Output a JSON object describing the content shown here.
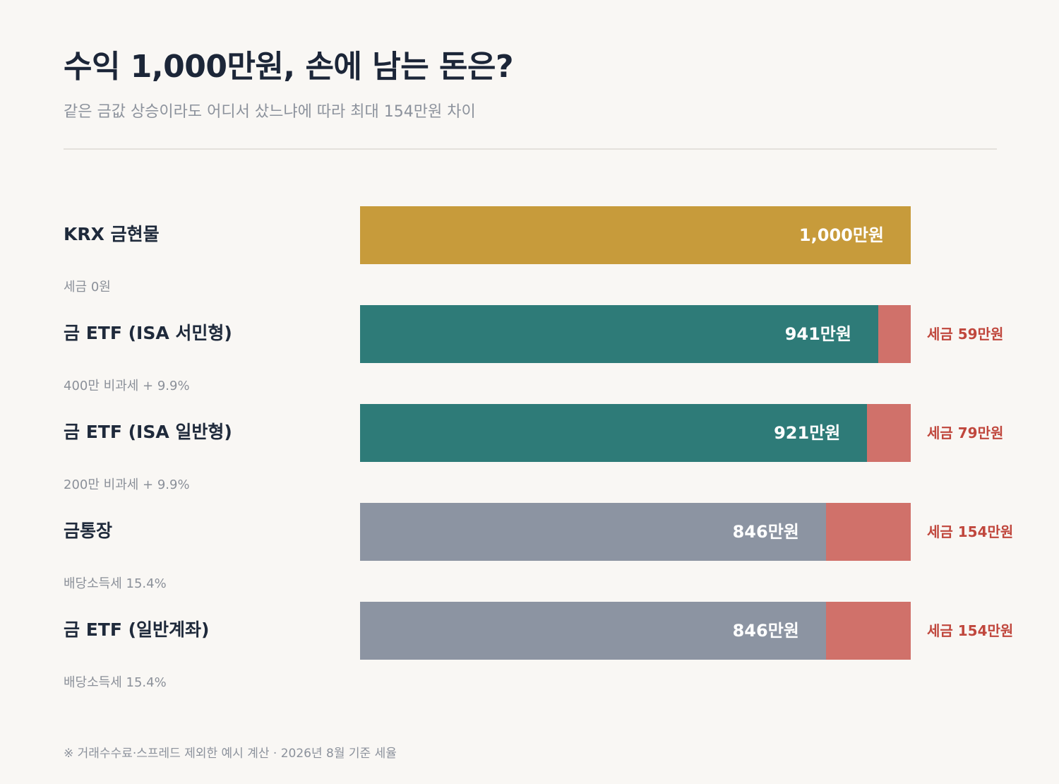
{
  "header": {
    "title": "수익 1,000만원, 손에 남는 돈은?",
    "subtitle": "같은 금값 상승이라도 어디서 샀느냐에 따라 최대 154만원 차이"
  },
  "colors": {
    "gold": "#c79b3b",
    "teal": "#2e7b78",
    "gray": "#8c94a2",
    "tax": "#d0716a",
    "tax_text": "#c0473d"
  },
  "chart_data": {
    "type": "bar",
    "orientation": "horizontal",
    "stacked": true,
    "xlim": [
      0,
      1000
    ],
    "unit": "만원",
    "categories": [
      "KRX 금현물",
      "금 ETF (ISA 서민형)",
      "금 ETF (ISA 일반형)",
      "금통장",
      "금 ETF (일반계좌)"
    ],
    "rows": [
      {
        "label": "KRX 금현물",
        "sub": "세금 0원",
        "net": 1000,
        "tax": 0,
        "net_label": "1,000만원",
        "tax_label": "",
        "color": "gold"
      },
      {
        "label": "금 ETF (ISA 서민형)",
        "sub": "400만 비과세 + 9.9%",
        "net": 941,
        "tax": 59,
        "net_label": "941만원",
        "tax_label": "세금 59만원",
        "color": "teal"
      },
      {
        "label": "금 ETF (ISA 일반형)",
        "sub": "200만 비과세 + 9.9%",
        "net": 921,
        "tax": 79,
        "net_label": "921만원",
        "tax_label": "세금 79만원",
        "color": "teal"
      },
      {
        "label": "금통장",
        "sub": "배당소득세 15.4%",
        "net": 846,
        "tax": 154,
        "net_label": "846만원",
        "tax_label": "세금 154만원",
        "color": "gray"
      },
      {
        "label": "금 ETF (일반계좌)",
        "sub": "배당소득세 15.4%",
        "net": 846,
        "tax": 154,
        "net_label": "846만원",
        "tax_label": "세금 154만원",
        "color": "gray"
      }
    ]
  },
  "footnote": "※ 거래수수료·스프레드 제외한 예시 계산 · 2026년 8월 기준 세율"
}
